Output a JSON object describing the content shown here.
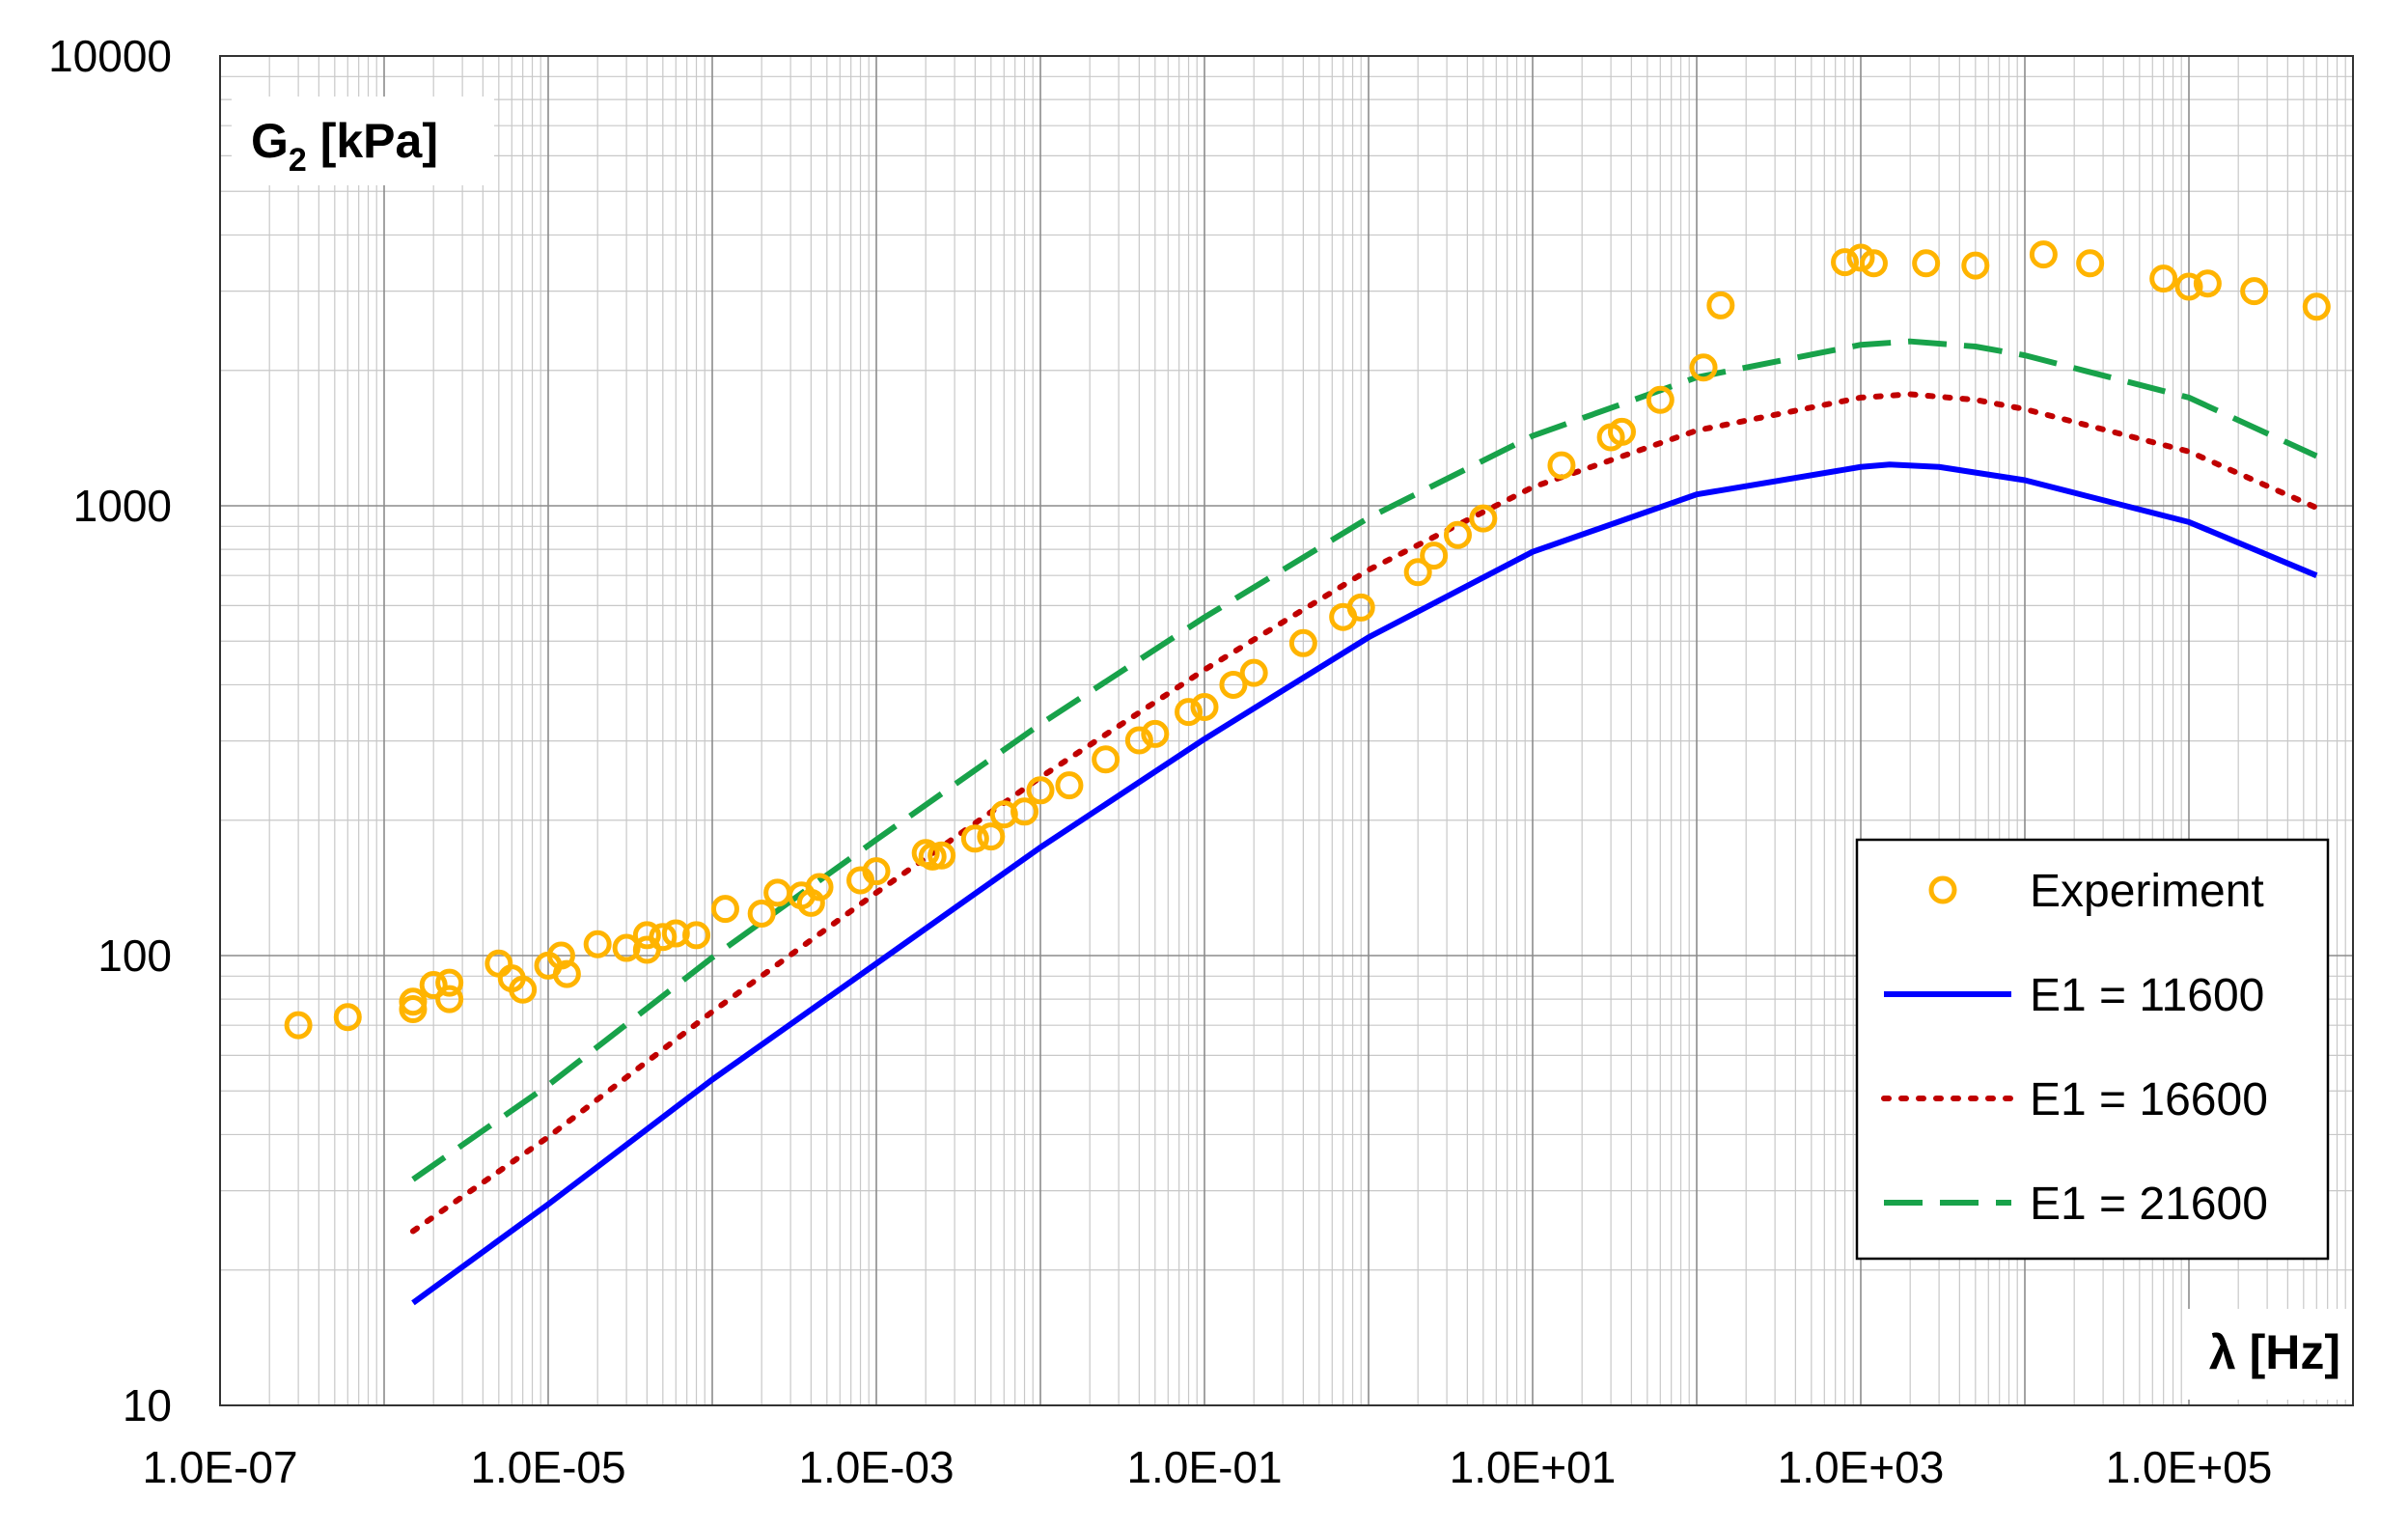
{
  "chart_data": {
    "type": "scatter",
    "title": "",
    "xlabel": "λ [Hz]",
    "ylabel_main": "G",
    "ylabel_sub": "2",
    "ylabel_unit": " [kPa]",
    "x_scale": "log",
    "y_scale": "log",
    "xlim": [
      1e-07,
      1000000
    ],
    "ylim": [
      10,
      10000
    ],
    "x_ticks": [
      {
        "value": 1e-07,
        "label": "1.0E-07"
      },
      {
        "value": 1e-05,
        "label": "1.0E-05"
      },
      {
        "value": 0.001,
        "label": "1.0E-03"
      },
      {
        "value": 0.1,
        "label": "1.0E-01"
      },
      {
        "value": 10,
        "label": "1.0E+01"
      },
      {
        "value": 1000,
        "label": "1.0E+03"
      },
      {
        "value": 100000,
        "label": "1.0E+05"
      }
    ],
    "y_ticks": [
      {
        "value": 10,
        "label": "10"
      },
      {
        "value": 100,
        "label": "100"
      },
      {
        "value": 1000,
        "label": "1000"
      },
      {
        "value": 10000,
        "label": "10000"
      }
    ],
    "grid": true,
    "legend_position": "bottom-right",
    "series": [
      {
        "name": "Experiment",
        "kind": "scatter",
        "marker": "circle-open",
        "color": "#FFB400",
        "points": [
          [
            3e-07,
            70
          ],
          [
            6e-07,
            73
          ],
          [
            1.5e-06,
            76
          ],
          [
            1.5e-06,
            79
          ],
          [
            2e-06,
            86
          ],
          [
            2.5e-06,
            80
          ],
          [
            2.5e-06,
            87
          ],
          [
            5e-06,
            96
          ],
          [
            6e-06,
            89
          ],
          [
            7e-06,
            84
          ],
          [
            1e-05,
            95
          ],
          [
            1.2e-05,
            100
          ],
          [
            1.3e-05,
            91
          ],
          [
            2e-05,
            106
          ],
          [
            3e-05,
            104
          ],
          [
            4e-05,
            103
          ],
          [
            4e-05,
            111
          ],
          [
            5e-05,
            110
          ],
          [
            6e-05,
            112
          ],
          [
            8e-05,
            111
          ],
          [
            0.00012,
            127
          ],
          [
            0.0002,
            124
          ],
          [
            0.00025,
            138
          ],
          [
            0.00035,
            136
          ],
          [
            0.0004,
            131
          ],
          [
            0.00045,
            142
          ],
          [
            0.0008,
            147
          ],
          [
            0.001,
            154
          ],
          [
            0.002,
            169
          ],
          [
            0.0022,
            166
          ],
          [
            0.0025,
            167
          ],
          [
            0.004,
            182
          ],
          [
            0.005,
            184
          ],
          [
            0.006,
            206
          ],
          [
            0.008,
            209
          ],
          [
            0.01,
            233
          ],
          [
            0.015,
            239
          ],
          [
            0.025,
            273
          ],
          [
            0.04,
            301
          ],
          [
            0.05,
            311
          ],
          [
            0.08,
            348
          ],
          [
            0.1,
            357
          ],
          [
            0.15,
            400
          ],
          [
            0.2,
            425
          ],
          [
            0.4,
            495
          ],
          [
            0.7,
            566
          ],
          [
            0.9,
            594
          ],
          [
            2.0,
            712
          ],
          [
            2.5,
            775
          ],
          [
            3.5,
            861
          ],
          [
            5.0,
            937
          ],
          [
            15.0,
            1230
          ],
          [
            30.0,
            1420
          ],
          [
            35.0,
            1460
          ],
          [
            60.0,
            1720
          ],
          [
            110.0,
            2030
          ],
          [
            140.0,
            2790
          ],
          [
            800.0,
            3480
          ],
          [
            1000.0,
            3560
          ],
          [
            1200.0,
            3460
          ],
          [
            2500.0,
            3460
          ],
          [
            5000.0,
            3420
          ],
          [
            13000.0,
            3620
          ],
          [
            25000.0,
            3460
          ],
          [
            70000.0,
            3200
          ],
          [
            100000.0,
            3070
          ],
          [
            130000.0,
            3120
          ],
          [
            250000.0,
            3000
          ],
          [
            600000.0,
            2770
          ]
        ]
      },
      {
        "name": "E1 = 11600",
        "kind": "line",
        "dash": "solid",
        "color": "#0000FF",
        "points": [
          [
            1.5e-06,
            16.9
          ],
          [
            1e-05,
            28
          ],
          [
            0.0001,
            53
          ],
          [
            0.001,
            96
          ],
          [
            0.01,
            174
          ],
          [
            0.1,
            303
          ],
          [
            1.0,
            510
          ],
          [
            10.0,
            790
          ],
          [
            100.0,
            1060
          ],
          [
            1000.0,
            1220
          ],
          [
            1500.0,
            1235
          ],
          [
            3000.0,
            1220
          ],
          [
            10000.0,
            1140
          ],
          [
            100000.0,
            920
          ],
          [
            600000.0,
            700
          ]
        ]
      },
      {
        "name": "E1 = 16600",
        "kind": "line",
        "dash": "dotted",
        "color": "#C00000",
        "points": [
          [
            1.5e-06,
            24.4
          ],
          [
            1e-05,
            39.5
          ],
          [
            0.0001,
            75
          ],
          [
            0.001,
            138
          ],
          [
            0.01,
            249
          ],
          [
            0.1,
            432
          ],
          [
            1.0,
            720
          ],
          [
            10.0,
            1100
          ],
          [
            100.0,
            1470
          ],
          [
            1000.0,
            1740
          ],
          [
            2000.0,
            1770
          ],
          [
            5000.0,
            1720
          ],
          [
            10000.0,
            1640
          ],
          [
            100000.0,
            1320
          ],
          [
            600000.0,
            990
          ]
        ]
      },
      {
        "name": "E1 = 21600",
        "kind": "line",
        "dash": "dashed",
        "color": "#18A24A",
        "points": [
          [
            1.5e-06,
            31.8
          ],
          [
            1e-05,
            51.5
          ],
          [
            0.0001,
            99
          ],
          [
            0.001,
            181
          ],
          [
            0.01,
            327
          ],
          [
            0.1,
            565
          ],
          [
            1.0,
            940
          ],
          [
            10.0,
            1430
          ],
          [
            100.0,
            1930
          ],
          [
            1000.0,
            2280
          ],
          [
            2000.0,
            2320
          ],
          [
            5000.0,
            2260
          ],
          [
            10000.0,
            2160
          ],
          [
            100000.0,
            1740
          ],
          [
            600000.0,
            1290
          ]
        ]
      }
    ]
  }
}
